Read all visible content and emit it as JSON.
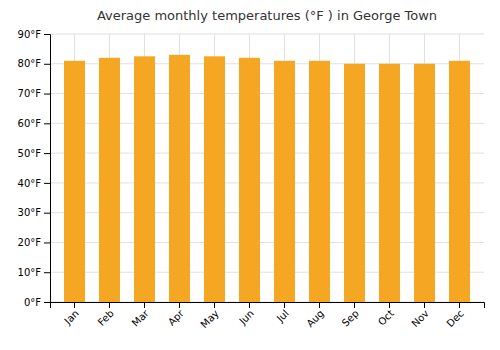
{
  "chart_data": {
    "type": "bar",
    "title": "Average monthly temperatures (°F ) in George Town",
    "categories": [
      "Jan",
      "Feb",
      "Mar",
      "Apr",
      "May",
      "Jun",
      "Jul",
      "Aug",
      "Sep",
      "Oct",
      "Nov",
      "Dec"
    ],
    "values": [
      81,
      82,
      82.5,
      83,
      82.5,
      82,
      81,
      81,
      80,
      80,
      80,
      81
    ],
    "color": "#F5A623",
    "ylim": [
      0,
      90
    ],
    "yticks": [
      {
        "value": 0,
        "label": "0°F"
      },
      {
        "value": 10,
        "label": "10°F"
      },
      {
        "value": 20,
        "label": "20°F"
      },
      {
        "value": 30,
        "label": "30°F"
      },
      {
        "value": 40,
        "label": "40°F"
      },
      {
        "value": 50,
        "label": "50°F"
      },
      {
        "value": 60,
        "label": "60°F"
      },
      {
        "value": 70,
        "label": "70°F"
      },
      {
        "value": 80,
        "label": "80°F"
      },
      {
        "value": 90,
        "label": "90°F"
      }
    ],
    "grid": true
  }
}
